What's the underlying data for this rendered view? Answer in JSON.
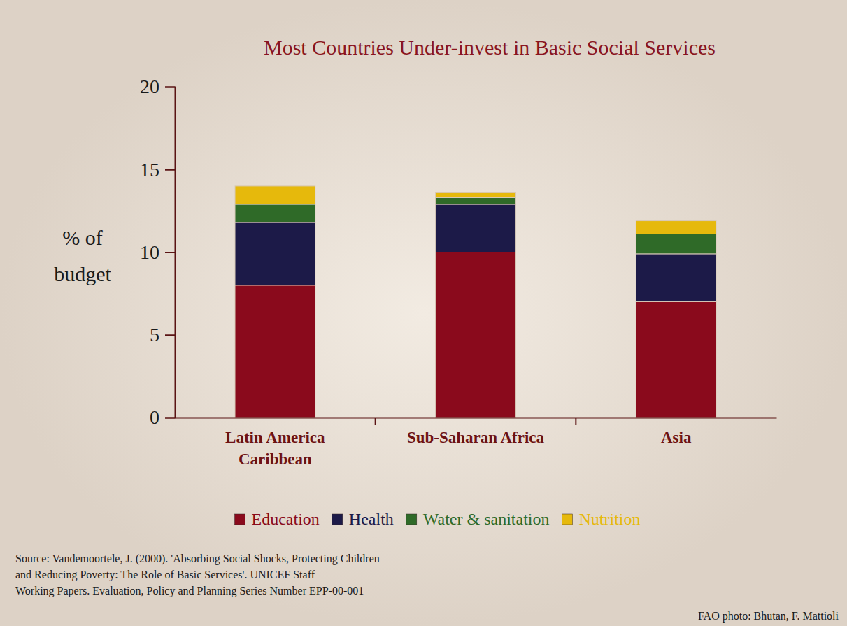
{
  "chart_data": {
    "type": "bar",
    "title": "Most Countries Under-invest in Basic Social Services",
    "y_label": "% of\nbudget",
    "categories": [
      "Latin America\nCaribbean",
      "Sub-Saharan Africa",
      "Asia"
    ],
    "series": [
      {
        "name": "Education",
        "color": "#8a0a1c",
        "values": [
          8,
          10,
          7
        ]
      },
      {
        "name": "Health",
        "color": "#1c1a48",
        "values": [
          3.8,
          2.9,
          2.9
        ]
      },
      {
        "name": "Water & sanitation",
        "color": "#2f6a28",
        "values": [
          1.1,
          0.4,
          1.2
        ]
      },
      {
        "name": "Nutrition",
        "color": "#e6b90c",
        "values": [
          1.1,
          0.3,
          0.8
        ]
      }
    ],
    "stacked": true,
    "ylim": [
      0,
      20
    ],
    "yticks": [
      0,
      5,
      10,
      15,
      20
    ],
    "grid": false,
    "legend": "bottom",
    "source": "Source: Vandemoortele, J. (2000). 'Absorbing Social Shocks, Protecting Children\nand Reducing Poverty: The Role of Basic Services'.  UNICEF Staff\nWorking Papers. Evaluation, Policy and Planning Series Number EPP-00-001",
    "credit": "FAO photo: Bhutan, F. Mattioli"
  }
}
